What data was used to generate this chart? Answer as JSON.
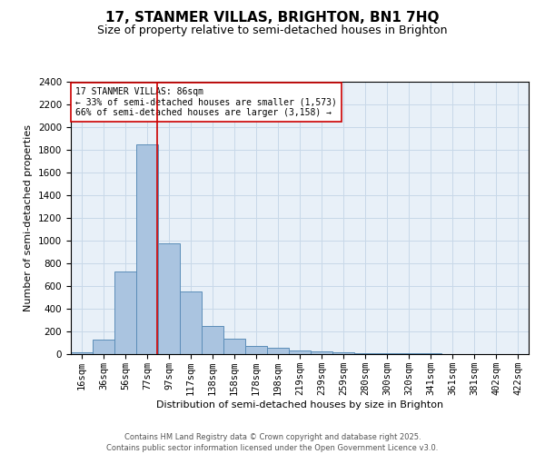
{
  "title": "17, STANMER VILLAS, BRIGHTON, BN1 7HQ",
  "subtitle": "Size of property relative to semi-detached houses in Brighton",
  "xlabel": "Distribution of semi-detached houses by size in Brighton",
  "ylabel": "Number of semi-detached properties",
  "bar_labels": [
    "16sqm",
    "36sqm",
    "56sqm",
    "77sqm",
    "97sqm",
    "117sqm",
    "138sqm",
    "158sqm",
    "178sqm",
    "198sqm",
    "219sqm",
    "239sqm",
    "259sqm",
    "280sqm",
    "300sqm",
    "320sqm",
    "341sqm",
    "361sqm",
    "381sqm",
    "402sqm",
    "422sqm"
  ],
  "bar_values": [
    15,
    130,
    730,
    1850,
    980,
    550,
    245,
    135,
    75,
    55,
    35,
    25,
    20,
    10,
    5,
    5,
    5,
    0,
    0,
    0,
    0
  ],
  "bar_color": "#aac4e0",
  "bar_edge_color": "#5b8db8",
  "property_line_color": "#cc0000",
  "annotation_title": "17 STANMER VILLAS: 86sqm",
  "annotation_line1": "← 33% of semi-detached houses are smaller (1,573)",
  "annotation_line2": "66% of semi-detached houses are larger (3,158) →",
  "annotation_box_color": "#ffffff",
  "annotation_box_edge": "#cc0000",
  "footer_line1": "Contains HM Land Registry data © Crown copyright and database right 2025.",
  "footer_line2": "Contains public sector information licensed under the Open Government Licence v3.0.",
  "ylim": [
    0,
    2400
  ],
  "yticks": [
    0,
    200,
    400,
    600,
    800,
    1000,
    1200,
    1400,
    1600,
    1800,
    2000,
    2200,
    2400
  ],
  "background_color": "#ffffff",
  "plot_bg_color": "#e8f0f8",
  "grid_color": "#c8d8e8",
  "title_fontsize": 11,
  "subtitle_fontsize": 9,
  "axis_label_fontsize": 8,
  "tick_fontsize": 7.5,
  "annotation_fontsize": 7,
  "footer_fontsize": 6
}
